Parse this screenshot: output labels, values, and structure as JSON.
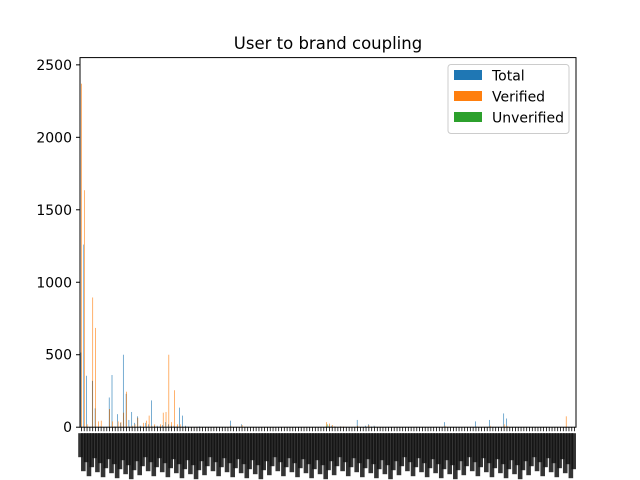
{
  "chart_data": {
    "type": "bar",
    "title": "User to brand coupling",
    "xlabel": "",
    "ylabel": "",
    "ylim": [
      0,
      2550
    ],
    "yticks": [
      0,
      500,
      1000,
      1500,
      2000,
      2500
    ],
    "category_count": 176,
    "x_tick_labels_note": "176 dense overlapping rotated category labels (illegible)",
    "legend": {
      "placement": "top-right",
      "entries": [
        "Total",
        "Verified",
        "Unverified"
      ]
    },
    "colors": {
      "Total": "#1f77b4",
      "Verified": "#ff7f0e",
      "Unverified": "#2ca02c"
    },
    "grid": false,
    "series": [
      {
        "name": "Total",
        "values": [
          515,
          1260,
          355,
          0,
          320,
          130,
          0,
          5,
          0,
          0,
          205,
          360,
          5,
          90,
          30,
          500,
          230,
          50,
          105,
          30,
          75,
          10,
          0,
          30,
          20,
          185,
          10,
          10,
          5,
          15,
          35,
          20,
          10,
          10,
          5,
          135,
          80,
          10,
          5,
          0,
          0,
          0,
          5,
          0,
          0,
          0,
          0,
          0,
          0,
          0,
          0,
          0,
          0,
          45,
          0,
          0,
          0,
          20,
          0,
          0,
          0,
          0,
          0,
          0,
          0,
          0,
          0,
          0,
          0,
          0,
          0,
          0,
          0,
          0,
          0,
          0,
          0,
          0,
          0,
          0,
          0,
          0,
          0,
          0,
          0,
          0,
          0,
          5,
          10,
          10,
          5,
          0,
          5,
          0,
          0,
          0,
          0,
          0,
          50,
          0,
          0,
          10,
          20,
          5,
          10,
          0,
          0,
          0,
          0,
          0,
          0,
          0,
          0,
          0,
          0,
          0,
          0,
          0,
          0,
          0,
          0,
          0,
          0,
          0,
          0,
          0,
          0,
          0,
          0,
          35,
          0,
          0,
          0,
          0,
          0,
          0,
          0,
          0,
          0,
          0,
          40,
          0,
          0,
          0,
          0,
          50,
          0,
          0,
          0,
          0,
          95,
          60,
          0,
          0,
          0,
          0,
          0,
          0,
          0,
          0,
          0,
          0,
          0,
          0,
          0,
          0,
          0,
          0,
          0,
          0,
          0,
          0,
          0,
          0,
          0,
          0
        ],
        "color": "#1f77b4"
      },
      {
        "name": "Verified",
        "values": [
          2370,
          1635,
          20,
          0,
          895,
          685,
          40,
          45,
          0,
          0,
          125,
          40,
          5,
          40,
          35,
          100,
          245,
          5,
          10,
          20,
          65,
          5,
          30,
          45,
          80,
          10,
          20,
          5,
          20,
          100,
          105,
          500,
          35,
          255,
          20,
          20,
          5,
          5,
          0,
          0,
          0,
          0,
          0,
          0,
          0,
          0,
          0,
          0,
          0,
          0,
          0,
          0,
          0,
          10,
          0,
          0,
          0,
          15,
          0,
          0,
          0,
          0,
          0,
          0,
          0,
          0,
          0,
          0,
          0,
          0,
          0,
          0,
          0,
          0,
          0,
          0,
          0,
          0,
          0,
          0,
          0,
          0,
          0,
          0,
          0,
          0,
          0,
          35,
          25,
          15,
          5,
          0,
          5,
          5,
          0,
          0,
          0,
          0,
          10,
          0,
          0,
          0,
          15,
          0,
          5,
          0,
          0,
          0,
          0,
          0,
          0,
          0,
          0,
          0,
          0,
          0,
          0,
          0,
          0,
          0,
          0,
          0,
          0,
          0,
          0,
          0,
          0,
          0,
          0,
          10,
          0,
          0,
          0,
          0,
          0,
          0,
          0,
          0,
          0,
          0,
          5,
          0,
          0,
          0,
          0,
          10,
          0,
          0,
          0,
          0,
          20,
          10,
          0,
          0,
          0,
          0,
          0,
          0,
          0,
          0,
          0,
          0,
          0,
          0,
          0,
          0,
          0,
          0,
          0,
          0,
          0,
          0,
          75,
          0,
          0,
          0
        ],
        "color": "#ff7f0e"
      },
      {
        "name": "Unverified",
        "values": [
          0,
          0,
          0,
          0,
          0,
          0,
          0,
          0,
          0,
          0,
          0,
          0,
          0,
          0,
          0,
          0,
          0,
          0,
          0,
          0,
          0,
          0,
          0,
          0,
          0,
          0,
          0,
          0,
          0,
          0,
          0,
          0,
          0,
          0,
          0,
          0,
          0,
          0,
          0,
          0,
          0,
          0,
          0,
          0,
          0,
          0,
          0,
          0,
          0,
          0,
          0,
          0,
          0,
          0,
          0,
          0,
          0,
          0,
          0,
          0,
          0,
          0,
          0,
          0,
          0,
          0,
          0,
          0,
          0,
          0,
          0,
          0,
          0,
          0,
          0,
          0,
          0,
          0,
          0,
          0,
          0,
          0,
          0,
          0,
          0,
          0,
          0,
          20,
          0,
          0,
          0,
          0,
          0,
          0,
          0,
          0,
          0,
          0,
          0,
          0,
          0,
          0,
          0,
          0,
          0,
          0,
          0,
          0,
          0,
          0,
          0,
          0,
          0,
          0,
          0,
          0,
          0,
          0,
          0,
          0,
          0,
          0,
          0,
          0,
          0,
          0,
          0,
          0,
          0,
          0,
          0,
          0,
          0,
          0,
          0,
          0,
          0,
          0,
          0,
          0,
          0,
          0,
          0,
          0,
          0,
          0,
          0,
          0,
          0,
          0,
          0,
          0,
          0,
          0,
          0,
          0,
          0,
          0,
          0,
          0,
          0,
          0,
          0,
          0,
          0,
          0,
          0,
          0,
          0,
          0,
          0,
          0,
          0,
          0,
          0,
          0
        ],
        "color": "#2ca02c"
      }
    ]
  }
}
